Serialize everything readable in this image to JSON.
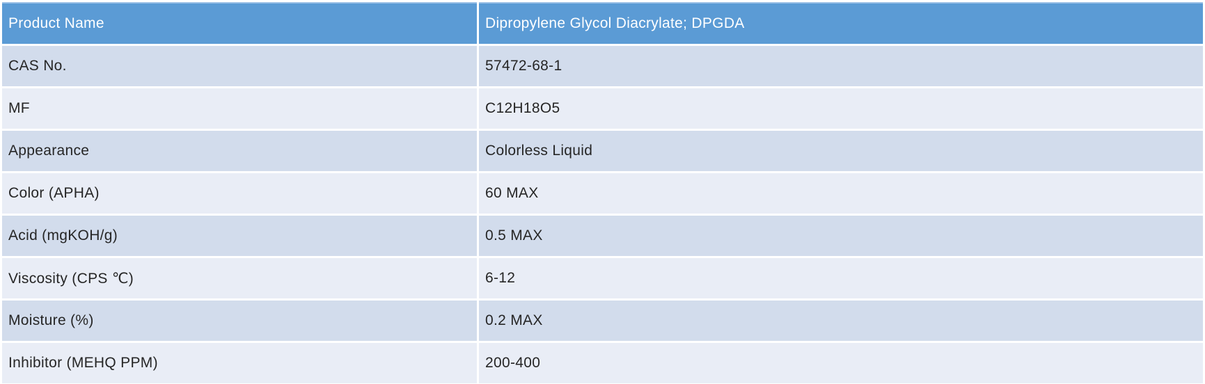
{
  "table": {
    "header": {
      "key": "Product Name",
      "value": "Dipropylene Glycol Diacrylate; DPGDA"
    },
    "rows": [
      {
        "key": "CAS No.",
        "value": "57472-68-1"
      },
      {
        "key": "MF",
        "value": "C12H18O5"
      },
      {
        "key": "Appearance",
        "value": "Colorless Liquid"
      },
      {
        "key": "Color (APHA)",
        "value": "60 MAX"
      },
      {
        "key": "Acid (mgKOH/g)",
        "value": "0.5 MAX"
      },
      {
        "key": "Viscosity (CPS ℃)",
        "value": "6-12"
      },
      {
        "key": "Moisture (%)",
        "value": "0.2 MAX"
      },
      {
        "key": "Inhibitor (MEHQ PPM)",
        "value": "200-400"
      }
    ],
    "colors": {
      "header_bg": "#5b9bd5",
      "header_text": "#ffffff",
      "header_top_border": "#9ec3e7",
      "band_dark": "#d2dcec",
      "band_light": "#e9edf6",
      "body_text": "#262626"
    }
  }
}
